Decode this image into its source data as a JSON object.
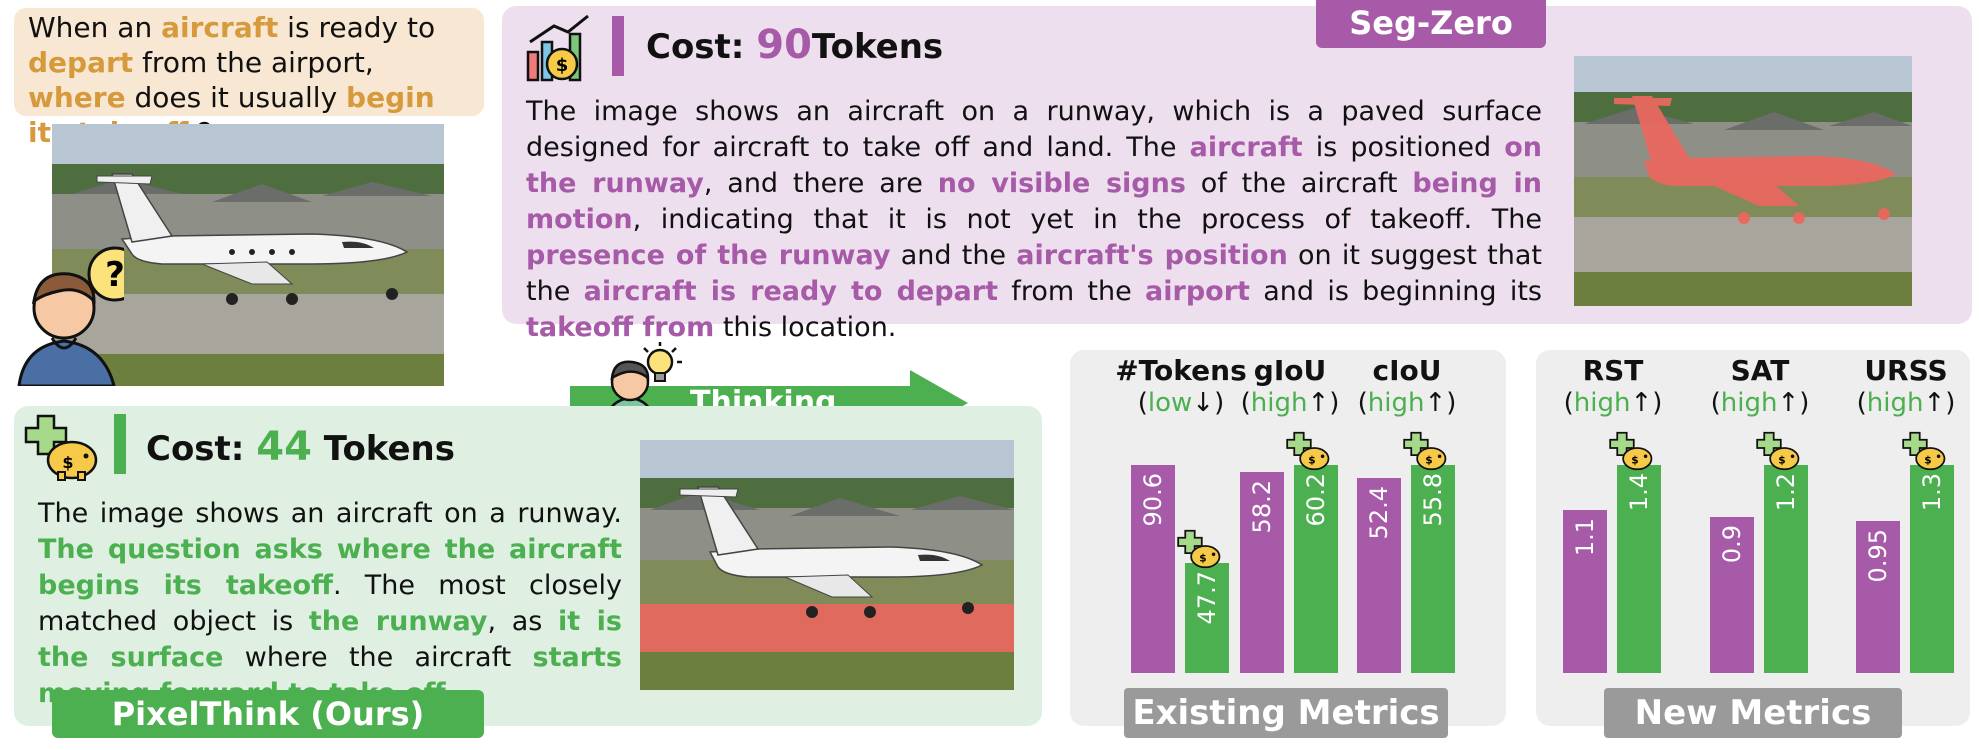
{
  "question": {
    "parts": [
      {
        "t": "When an ",
        "hl": false
      },
      {
        "t": "aircraft",
        "hl": true
      },
      {
        "t": " is ready to ",
        "hl": false
      },
      {
        "t": "depart",
        "hl": true
      },
      {
        "t": " from the airport, ",
        "hl": false
      },
      {
        "t": "where",
        "hl": true
      },
      {
        "t": " does it usually ",
        "hl": false
      },
      {
        "t": "begin its takeoff",
        "hl": true
      },
      {
        "t": " ?",
        "hl": false
      }
    ]
  },
  "segzero": {
    "tag": "Seg-Zero",
    "cost_label": "Cost:",
    "cost_value": "90",
    "cost_unit": "Tokens",
    "paragraph": [
      {
        "t": "The image shows an aircraft on a runway, which is a paved surface designed for aircraft to take off and land. The ",
        "hl": false
      },
      {
        "t": "aircraft",
        "hl": true
      },
      {
        "t": " is positioned ",
        "hl": false
      },
      {
        "t": "on the runway",
        "hl": true
      },
      {
        "t": ", and there are ",
        "hl": false
      },
      {
        "t": "no visible signs",
        "hl": true
      },
      {
        "t": " of the aircraft ",
        "hl": false
      },
      {
        "t": "being in motion",
        "hl": true
      },
      {
        "t": ", indicating that it is not yet in the process of takeoff. The ",
        "hl": false
      },
      {
        "t": "presence of the runway",
        "hl": true
      },
      {
        "t": " and the ",
        "hl": false
      },
      {
        "t": "aircraft's position",
        "hl": true
      },
      {
        "t": " on it suggest that the ",
        "hl": false
      },
      {
        "t": "aircraft is ready to depart",
        "hl": true
      },
      {
        "t": " from the ",
        "hl": false
      },
      {
        "t": "airport",
        "hl": true
      },
      {
        "t": " and is beginning its ",
        "hl": false
      },
      {
        "t": "takeoff from",
        "hl": true
      },
      {
        "t": " this location.",
        "hl": false
      }
    ]
  },
  "thinking": {
    "label": "Thinking . . ."
  },
  "pixelthink": {
    "tag": "PixelThink (Ours)",
    "cost_label": "Cost:",
    "cost_value": "44",
    "cost_unit": "Tokens",
    "paragraph": [
      {
        "t": "The image shows an aircraft on a runway. ",
        "hl": false
      },
      {
        "t": "The question asks where the aircraft begins its takeoff",
        "hl": true
      },
      {
        "t": ". The most closely matched object is ",
        "hl": false
      },
      {
        "t": "the runway",
        "hl": true
      },
      {
        "t": ", as ",
        "hl": false
      },
      {
        "t": "it is the surface",
        "hl": true
      },
      {
        "t": " where the aircraft ",
        "hl": false
      },
      {
        "t": "starts moving forward to take off",
        "hl": true
      },
      {
        "t": ".",
        "hl": false
      }
    ]
  },
  "colors": {
    "segzero": "#a65aa8",
    "pixelthink": "#4cb050",
    "question": "#d69a3c",
    "metric_tag": "#9a9a9a"
  },
  "chart_data": [
    {
      "type": "bar",
      "tag": "Existing Metrics",
      "categories": [
        {
          "name": "#Tokens",
          "dir": "low",
          "arrow": "↓"
        },
        {
          "name": "gIoU",
          "dir": "high",
          "arrow": "↑"
        },
        {
          "name": "cIoU",
          "dir": "high",
          "arrow": "↑"
        }
      ],
      "series": [
        {
          "key": "segzero",
          "values": [
            90.6,
            58.2,
            52.4
          ],
          "labels": [
            "90.6",
            "58.2",
            "52.4"
          ]
        },
        {
          "key": "pixelthink",
          "values": [
            47.7,
            60.2,
            55.8
          ],
          "labels": [
            "47.7",
            "60.2",
            "55.8"
          ]
        }
      ]
    },
    {
      "type": "bar",
      "tag": "New Metrics",
      "categories": [
        {
          "name": "RST",
          "dir": "high",
          "arrow": "↑"
        },
        {
          "name": "SAT",
          "dir": "high",
          "arrow": "↑"
        },
        {
          "name": "URSS",
          "dir": "high",
          "arrow": "↑"
        }
      ],
      "series": [
        {
          "key": "segzero",
          "values": [
            1.1,
            0.9,
            0.95
          ],
          "labels": [
            "1.1",
            "0.9",
            "0.95"
          ]
        },
        {
          "key": "pixelthink",
          "values": [
            1.4,
            1.2,
            1.3
          ],
          "labels": [
            "1.4",
            "1.2",
            "1.3"
          ]
        }
      ]
    }
  ]
}
